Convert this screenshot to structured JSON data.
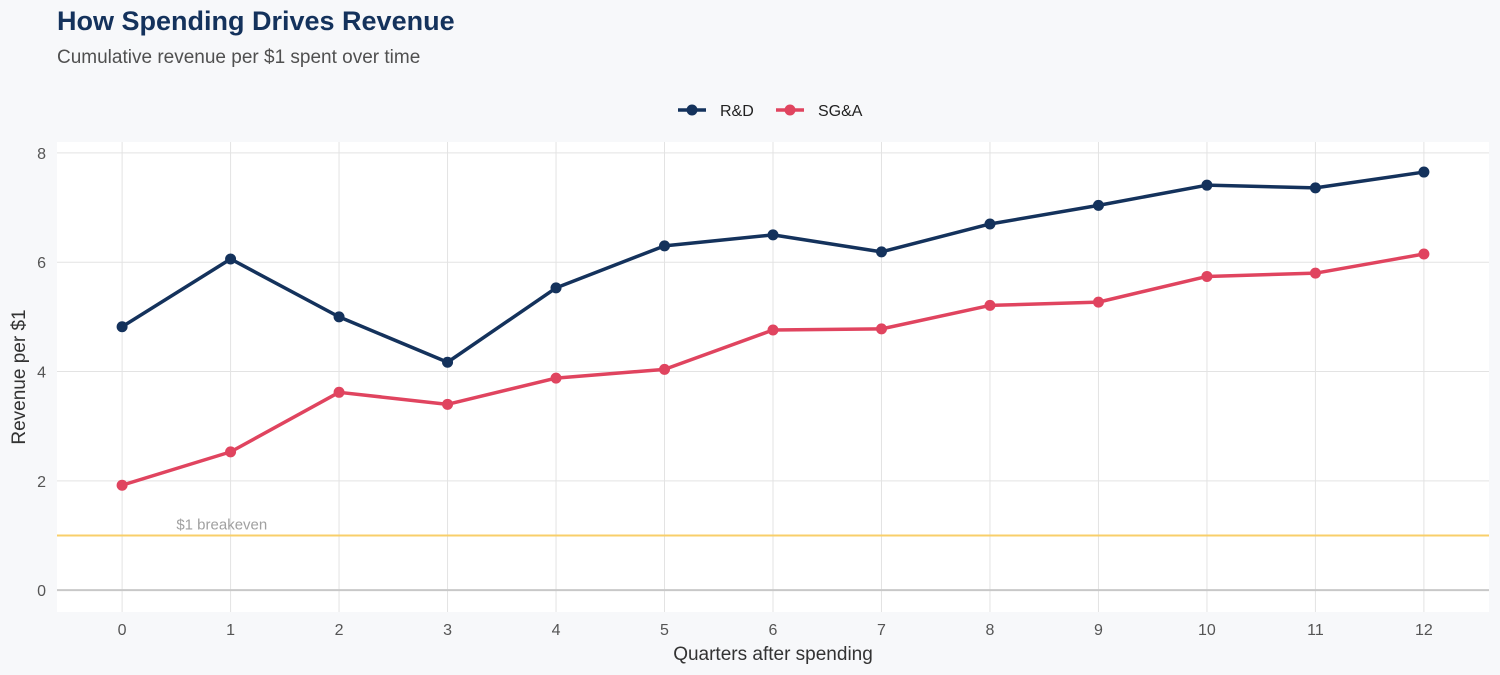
{
  "title": "How Spending Drives Revenue",
  "subtitle": "Cumulative revenue per $1 spent over time",
  "chart_data": {
    "type": "line",
    "title": "How Spending Drives Revenue",
    "subtitle": "Cumulative revenue per $1 spent over time",
    "xlabel": "Quarters after spending",
    "ylabel": "Revenue per $1",
    "x": [
      0,
      1,
      2,
      3,
      4,
      5,
      6,
      7,
      8,
      9,
      10,
      11,
      12
    ],
    "xlim": [
      -0.6,
      12.6
    ],
    "ylim": [
      -0.4,
      8.2
    ],
    "yticks": [
      0,
      2,
      4,
      6,
      8
    ],
    "grid": true,
    "legend_position": "top-center",
    "series": [
      {
        "name": "R&D",
        "color": "#14325c",
        "values": [
          4.82,
          6.06,
          5.0,
          4.17,
          5.53,
          6.3,
          6.5,
          6.19,
          6.7,
          7.04,
          7.41,
          7.36,
          7.65
        ]
      },
      {
        "name": "SG&A",
        "color": "#e0445f",
        "values": [
          1.92,
          2.53,
          3.62,
          3.4,
          3.88,
          4.04,
          4.76,
          4.78,
          5.21,
          5.27,
          5.74,
          5.8,
          6.15
        ]
      }
    ],
    "reference_line": {
      "y": 1,
      "label": "$1 breakeven",
      "color": "#f8cf6a"
    }
  }
}
